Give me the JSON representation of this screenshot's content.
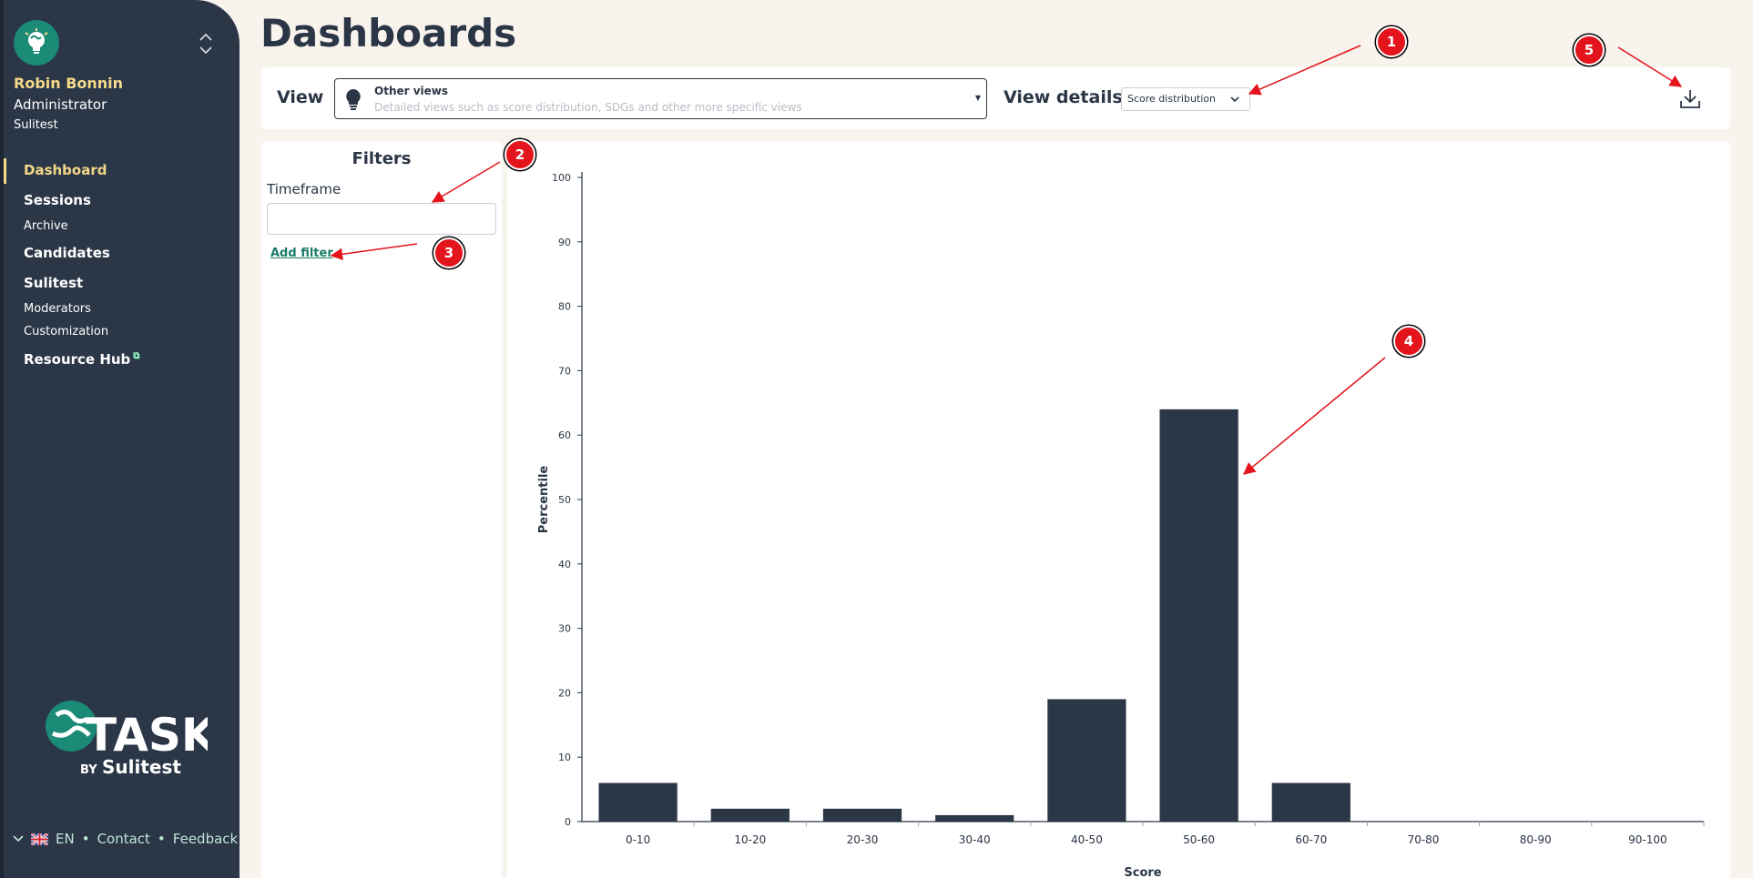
{
  "sidebar": {
    "user": {
      "name": "Robin Bonnin",
      "role": "Administrator",
      "org": "Sulitest"
    },
    "nav": [
      {
        "label": "Dashboard",
        "type": "main",
        "active": true
      },
      {
        "label": "Sessions",
        "type": "main"
      },
      {
        "label": "Archive",
        "type": "sub"
      },
      {
        "label": "Candidates",
        "type": "main"
      },
      {
        "label": "Sulitest",
        "type": "main"
      },
      {
        "label": "Moderators",
        "type": "sub"
      },
      {
        "label": "Customization",
        "type": "sub"
      },
      {
        "label": "Resource Hub",
        "type": "main",
        "external": true
      }
    ],
    "logo": {
      "text": "TASK",
      "by": "BY",
      "brand": "Sulitest"
    },
    "footer": {
      "language": "EN",
      "contact": "Contact",
      "feedback": "Feedback",
      "separator": "•"
    }
  },
  "header": {
    "title": "Dashboards"
  },
  "view_bar": {
    "view_label": "View",
    "view_select": {
      "title": "Other views",
      "description": "Detailed views such as score distribution, SDGs and other more specific views"
    },
    "details_label": "View details",
    "details_value": "Score distribution",
    "download_icon": "download-icon"
  },
  "filters": {
    "title": "Filters",
    "timeframe_label": "Timeframe",
    "timeframe_value": "",
    "add_filter": "Add filter"
  },
  "chart_data": {
    "type": "bar",
    "categories": [
      "0-10",
      "10-20",
      "20-30",
      "30-40",
      "40-50",
      "50-60",
      "60-70",
      "70-80",
      "80-90",
      "90-100"
    ],
    "values": [
      6,
      2,
      2,
      1,
      19,
      64,
      6,
      0,
      0,
      0
    ],
    "xlabel": "Score",
    "ylabel": "Percentile",
    "ylim": [
      0,
      100
    ],
    "yticks": [
      0,
      10,
      20,
      30,
      40,
      50,
      60,
      70,
      80,
      90,
      100
    ],
    "bar_color": "#2b3647",
    "grid": false
  },
  "annotations": [
    "1",
    "2",
    "3",
    "4",
    "5"
  ],
  "colors": {
    "sidebar": "#2b3647",
    "accent": "#f5d98a",
    "link": "#1b7a68",
    "annotation": "#e3141b",
    "background": "#f8f3ed"
  }
}
